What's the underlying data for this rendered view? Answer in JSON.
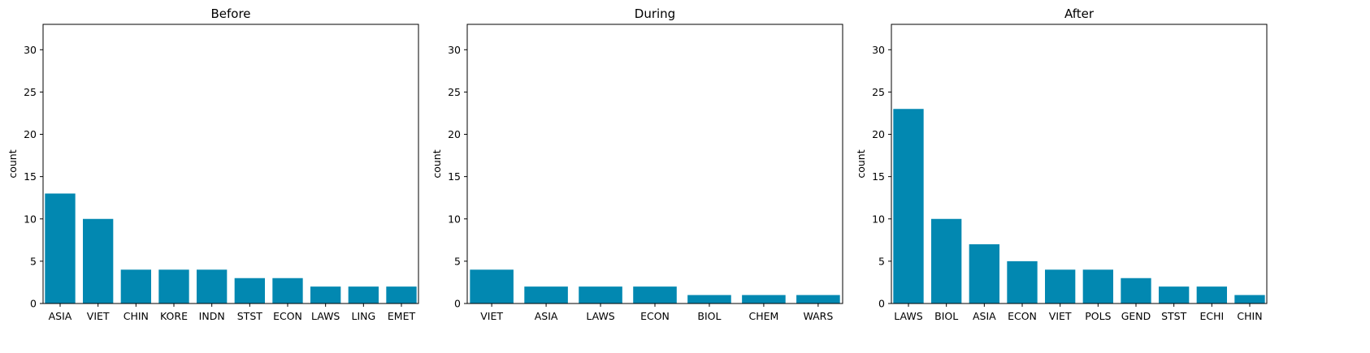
{
  "colors": {
    "bar": "#0288b1",
    "axis": "#000000",
    "background": "#ffffff"
  },
  "chart_data": [
    {
      "type": "bar",
      "title": "Before",
      "xlabel": "",
      "ylabel": "count",
      "ylim": [
        0,
        33
      ],
      "yticks": [
        0,
        5,
        10,
        15,
        20,
        25,
        30
      ],
      "grid": false,
      "categories": [
        "ASIA",
        "VIET",
        "CHIN",
        "KORE",
        "INDN",
        "STST",
        "ECON",
        "LAWS",
        "LING",
        "EMET"
      ],
      "values": [
        13,
        10,
        4,
        4,
        4,
        3,
        3,
        2,
        2,
        2
      ]
    },
    {
      "type": "bar",
      "title": "During",
      "xlabel": "",
      "ylabel": "count",
      "ylim": [
        0,
        33
      ],
      "yticks": [
        0,
        5,
        10,
        15,
        20,
        25,
        30
      ],
      "grid": false,
      "categories": [
        "VIET",
        "ASIA",
        "LAWS",
        "ECON",
        "BIOL",
        "CHEM",
        "WARS"
      ],
      "values": [
        4,
        2,
        2,
        2,
        1,
        1,
        1
      ]
    },
    {
      "type": "bar",
      "title": "After",
      "xlabel": "",
      "ylabel": "count",
      "ylim": [
        0,
        33
      ],
      "yticks": [
        0,
        5,
        10,
        15,
        20,
        25,
        30
      ],
      "grid": false,
      "categories": [
        "LAWS",
        "BIOL",
        "ASIA",
        "ECON",
        "VIET",
        "POLS",
        "GEND",
        "STST",
        "ECHI",
        "CHIN"
      ],
      "values": [
        23,
        10,
        7,
        5,
        4,
        4,
        3,
        2,
        2,
        1
      ]
    }
  ]
}
